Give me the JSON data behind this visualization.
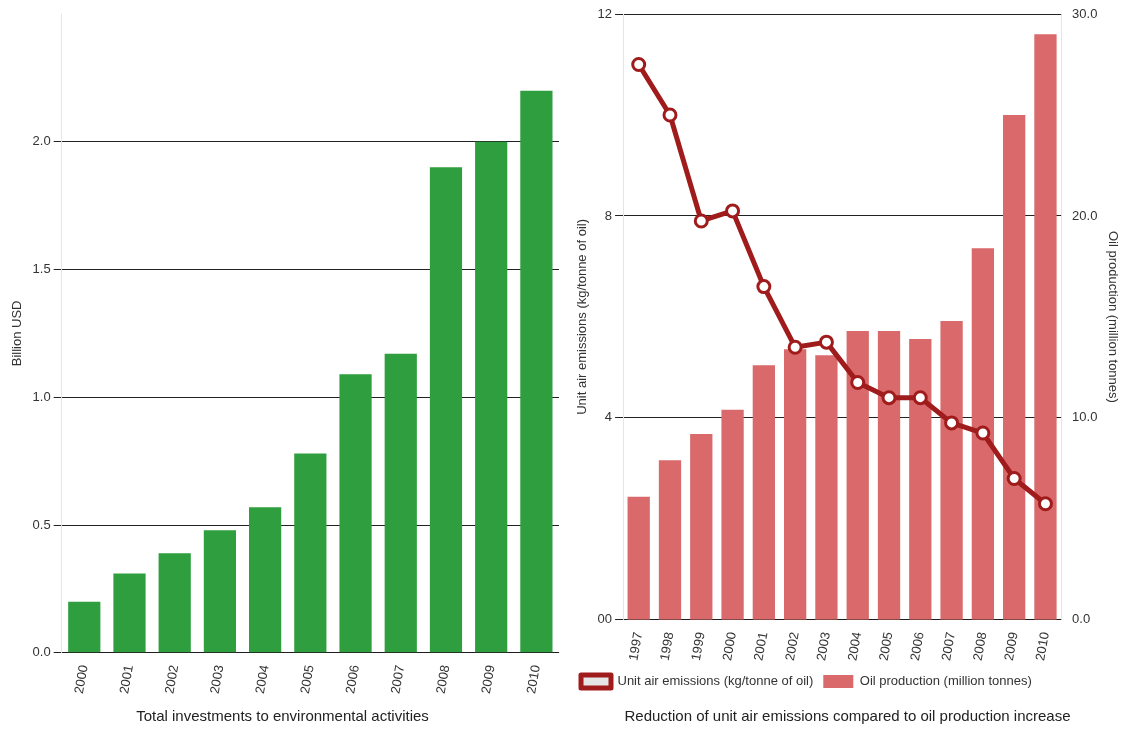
{
  "chart_data": [
    {
      "type": "bar",
      "title": "Total investments to environmental activities",
      "ylabel": "Billion USD",
      "categories": [
        "2000",
        "2001",
        "2002",
        "2003",
        "2004",
        "2005",
        "2006",
        "2007",
        "2008",
        "2009",
        "2010"
      ],
      "values": [
        0.2,
        0.31,
        0.39,
        0.48,
        0.57,
        0.78,
        1.09,
        1.17,
        1.9,
        2.0,
        2.2
      ],
      "color": "#2e9e3e",
      "ylim": [
        0,
        2.5
      ],
      "yticks": [
        {
          "value": 0,
          "label": "0.0"
        },
        {
          "value": 0.5,
          "label": "0.5"
        },
        {
          "value": 1,
          "label": "1.0"
        },
        {
          "value": 1.5,
          "label": "1.5"
        },
        {
          "value": 2,
          "label": "2.0"
        }
      ],
      "grid": "y",
      "legend": false
    },
    {
      "type": "bar",
      "title": "Reduction of unit air emissions compared to oil production increase",
      "ylabel": "Unit air emissions (kg/tonne of oil)",
      "y2label": "Oil production (million tonnes)",
      "categories": [
        "1997",
        "1998",
        "1999",
        "2000",
        "2001",
        "2002",
        "2003",
        "2004",
        "2005",
        "2006",
        "2007",
        "2008",
        "2009",
        "2010"
      ],
      "series": [
        {
          "name": "Unit air emissions (kg/tonne of oil)",
          "type": "line",
          "color": "#a01c1c",
          "marker": "circle",
          "values": [
            11.0,
            10.0,
            7.9,
            8.1,
            6.6,
            5.4,
            5.5,
            4.7,
            4.4,
            4.4,
            3.9,
            3.7,
            2.8,
            2.3
          ]
        },
        {
          "name": "Oil production (million tonnes)",
          "type": "bar",
          "axis": "y2",
          "color": "#d9696a",
          "values": [
            6.1,
            7.9,
            9.2,
            10.4,
            12.6,
            13.4,
            13.1,
            14.3,
            14.3,
            13.9,
            14.8,
            18.4,
            25.0,
            29.0
          ]
        }
      ],
      "ylim": [
        0,
        12
      ],
      "yticks": [
        {
          "value": 0,
          "label": "00"
        },
        4,
        8,
        12
      ],
      "y2lim": [
        0,
        30
      ],
      "y2ticks": [
        {
          "value": 0,
          "label": "0.0"
        },
        {
          "value": 10,
          "label": "10.0"
        },
        {
          "value": 20,
          "label": "20.0"
        },
        {
          "value": 30,
          "label": "30.0"
        }
      ],
      "grid": "y",
      "legend": "bottom"
    }
  ]
}
